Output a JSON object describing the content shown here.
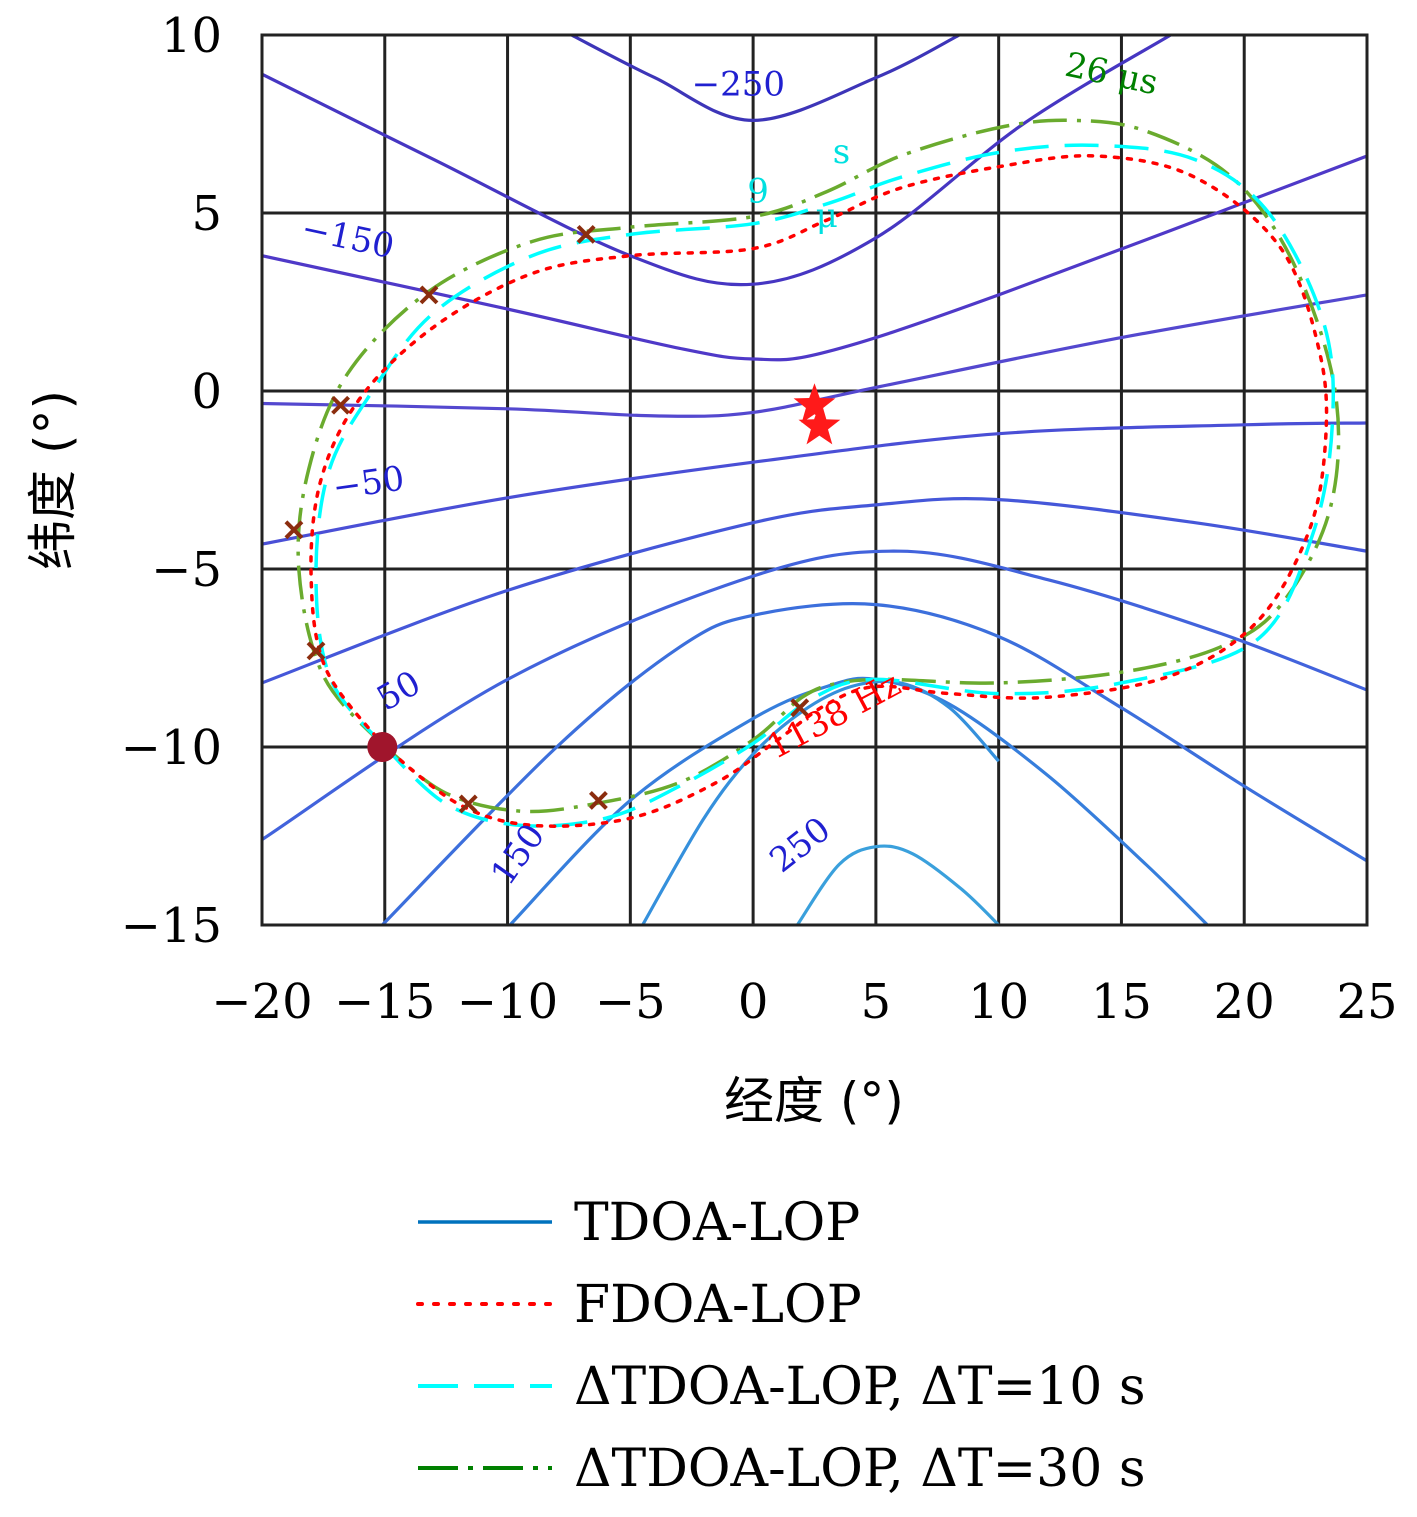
{
  "chart_data": {
    "type": "line",
    "xlabel": "经度 (°)",
    "ylabel": "纬度 (°)",
    "xlim": [
      -20,
      25
    ],
    "ylim": [
      -15,
      10
    ],
    "xticks": [
      "−20",
      "−15",
      "−10",
      "−5",
      "0",
      "5",
      "10",
      "15",
      "20",
      "25"
    ],
    "yticks": [
      "10",
      "5",
      "0",
      "−5",
      "−10",
      "−15"
    ],
    "grid": true,
    "legend_position": "bottom",
    "legend": [
      {
        "label": "TDOA-LOP",
        "color": "#0072bd",
        "style": "solid"
      },
      {
        "label": "FDOA-LOP",
        "color": "#ff0000",
        "style": "dotted"
      },
      {
        "label": "ΔTDOA-LOP, ΔT=10 s",
        "color": "#00ffff",
        "style": "dashed"
      },
      {
        "label": "ΔTDOA-LOP, ΔT=30 s",
        "color": "#008000",
        "style": "dashdot"
      }
    ],
    "tdoa_lops": [
      {
        "color": "#3d35b8",
        "points": [
          [
            -7.4,
            10
          ],
          [
            -4,
            8.8
          ],
          [
            0,
            7.6
          ],
          [
            5,
            8.8
          ],
          [
            8.4,
            10
          ]
        ]
      },
      {
        "color": "#4636c2",
        "points": [
          [
            -20,
            8.9
          ],
          [
            -13,
            6.5
          ],
          [
            -5,
            3.8
          ],
          [
            0,
            3
          ],
          [
            5,
            4.3
          ],
          [
            11,
            7.5
          ],
          [
            17,
            10
          ]
        ]
      },
      {
        "color": "#4f39c8",
        "points": [
          [
            -20,
            3.8
          ],
          [
            -10,
            2.3
          ],
          [
            -3,
            1.2
          ],
          [
            0,
            0.9
          ],
          [
            3,
            1.1
          ],
          [
            10,
            2.7
          ],
          [
            25,
            6.6
          ]
        ]
      },
      {
        "color": "#5448cf",
        "points": [
          [
            -20,
            -0.35
          ],
          [
            -10,
            -0.5
          ],
          [
            -4,
            -0.7
          ],
          [
            0,
            -0.6
          ],
          [
            5,
            0.1
          ],
          [
            15,
            1.5
          ],
          [
            25,
            2.7
          ]
        ]
      },
      {
        "color": "#4a4fd6",
        "points": [
          [
            -20,
            -4.3
          ],
          [
            -10,
            -3
          ],
          [
            0,
            -2
          ],
          [
            10,
            -1.2
          ],
          [
            20,
            -0.95
          ],
          [
            25,
            -0.9
          ]
        ]
      },
      {
        "color": "#4557d9",
        "points": [
          [
            -20,
            -8.2
          ],
          [
            -10,
            -5.6
          ],
          [
            0,
            -3.7
          ],
          [
            5,
            -3.2
          ],
          [
            10,
            -3.05
          ],
          [
            18,
            -3.7
          ],
          [
            25,
            -4.5
          ]
        ]
      },
      {
        "color": "#4263dc",
        "points": [
          [
            -20,
            -12.6
          ],
          [
            -10,
            -8.1
          ],
          [
            0,
            -5.2
          ],
          [
            6,
            -4.5
          ],
          [
            12,
            -5.3
          ],
          [
            19,
            -6.8
          ],
          [
            25,
            -8.4
          ]
        ]
      },
      {
        "color": "#3c6fdc",
        "points": [
          [
            -15.1,
            -15
          ],
          [
            -8,
            -10
          ],
          [
            -3,
            -7.2
          ],
          [
            0,
            -6.3
          ],
          [
            5,
            -6
          ],
          [
            10,
            -6.9
          ],
          [
            15,
            -8.9
          ],
          [
            20,
            -11.1
          ],
          [
            25,
            -13.2
          ]
        ]
      },
      {
        "color": "#367edc",
        "points": [
          [
            -9.9,
            -15
          ],
          [
            -5,
            -11.5
          ],
          [
            0,
            -9.2
          ],
          [
            3,
            -8.3
          ],
          [
            5,
            -8.1
          ],
          [
            8,
            -8.8
          ],
          [
            12,
            -10.8
          ],
          [
            16,
            -13.3
          ],
          [
            18.5,
            -15
          ]
        ]
      },
      {
        "color": "#3590dc",
        "points": [
          [
            -4.5,
            -15
          ],
          [
            -2,
            -12
          ],
          [
            0,
            -10.2
          ],
          [
            2,
            -9
          ],
          [
            4,
            -8.3
          ],
          [
            6,
            -8.2
          ],
          [
            8,
            -8.9
          ],
          [
            10,
            -10.4
          ]
        ]
      },
      {
        "color": "#3aa0dc",
        "points": [
          [
            1.8,
            -15
          ],
          [
            3.5,
            -13.3
          ],
          [
            5,
            -12.8
          ],
          [
            6.5,
            -13
          ],
          [
            8.5,
            -14
          ],
          [
            10,
            -15
          ]
        ]
      }
    ],
    "contour_labels": [
      {
        "text": "−250",
        "x": -0.6,
        "y": 8.3,
        "rotation": 0,
        "color": "#2020d0"
      },
      {
        "text": "−150",
        "x": -16.6,
        "y": 4.0,
        "rotation": 12,
        "color": "#2020d0"
      },
      {
        "text": "−50",
        "x": -15.6,
        "y": -2.9,
        "rotation": -8,
        "color": "#2020d0"
      },
      {
        "text": "50",
        "x": -14.2,
        "y": -8.7,
        "rotation": -30,
        "color": "#2020d0"
      },
      {
        "text": "150",
        "x": -9.2,
        "y": -13.2,
        "rotation": -55,
        "color": "#2020d0"
      },
      {
        "text": "250",
        "x": 2.2,
        "y": -13.0,
        "rotation": -38,
        "color": "#2020d0"
      },
      {
        "text": "26 μs",
        "x": 14.5,
        "y": 8.6,
        "rotation": 12,
        "color": "#008000"
      },
      {
        "text": "9",
        "x": 0.2,
        "y": 5.3,
        "rotation": 0,
        "color": "#00e0e0"
      },
      {
        "text": "μ",
        "x": 3.0,
        "y": 4.6,
        "rotation": 0,
        "color": "#00e0e0"
      },
      {
        "text": "s",
        "x": 3.6,
        "y": 6.4,
        "rotation": 0,
        "color": "#00e0e0"
      },
      {
        "text": "1138 Hz",
        "x": 3.5,
        "y": -9.4,
        "rotation": -28,
        "color": "#ff0000"
      }
    ],
    "fdoa_lop": {
      "color": "#ff0000",
      "points": [
        [
          -15,
          -10
        ],
        [
          -17.4,
          -7.8
        ],
        [
          -18,
          -5.2
        ],
        [
          -17.6,
          -2.5
        ],
        [
          -16,
          -0.2
        ],
        [
          -13,
          1.8
        ],
        [
          -9,
          3.3
        ],
        [
          -5,
          3.8
        ],
        [
          0,
          4
        ],
        [
          3,
          4.8
        ],
        [
          6,
          5.7
        ],
        [
          10,
          6.3
        ],
        [
          14,
          6.6
        ],
        [
          18,
          6
        ],
        [
          21.5,
          4
        ],
        [
          23.1,
          1
        ],
        [
          23.3,
          -1.5
        ],
        [
          22.6,
          -4
        ],
        [
          20.5,
          -6.5
        ],
        [
          17,
          -8
        ],
        [
          12,
          -8.6
        ],
        [
          8,
          -8.5
        ],
        [
          5,
          -8.3
        ],
        [
          3,
          -8.8
        ],
        [
          1,
          -9.8
        ],
        [
          -1.5,
          -11
        ],
        [
          -5,
          -12
        ],
        [
          -9,
          -12.2
        ],
        [
          -12,
          -11.6
        ],
        [
          -15,
          -10
        ]
      ]
    },
    "dtdoa10_lop": {
      "color": "#00ffff",
      "points": [
        [
          -15,
          -10
        ],
        [
          -17.2,
          -8.1
        ],
        [
          -17.8,
          -5.3
        ],
        [
          -17.3,
          -2.3
        ],
        [
          -15.5,
          0
        ],
        [
          -13,
          2.2
        ],
        [
          -9,
          3.8
        ],
        [
          -5,
          4.4
        ],
        [
          0,
          4.7
        ],
        [
          3.2,
          5.3
        ],
        [
          6,
          6
        ],
        [
          10,
          6.7
        ],
        [
          14,
          6.9
        ],
        [
          18,
          6.5
        ],
        [
          21,
          5
        ],
        [
          23.2,
          2
        ],
        [
          23.6,
          -0.8
        ],
        [
          22.8,
          -4
        ],
        [
          20.5,
          -7
        ],
        [
          15,
          -8.2
        ],
        [
          10,
          -8.5
        ],
        [
          5,
          -8.1
        ],
        [
          2.5,
          -8.6
        ],
        [
          0,
          -9.9
        ],
        [
          -3,
          -11.1
        ],
        [
          -6,
          -12
        ],
        [
          -9.5,
          -12.2
        ],
        [
          -12.5,
          -11.6
        ],
        [
          -15,
          -10
        ]
      ]
    },
    "dtdoa30_lop": {
      "color": "#6aab2e",
      "points": [
        [
          -15,
          -10
        ],
        [
          -17.5,
          -8
        ],
        [
          -18.5,
          -5
        ],
        [
          -18.1,
          -2.2
        ],
        [
          -16.5,
          0.5
        ],
        [
          -13.2,
          2.8
        ],
        [
          -9,
          4.2
        ],
        [
          -5,
          4.6
        ],
        [
          0,
          4.9
        ],
        [
          3,
          5.6
        ],
        [
          6,
          6.6
        ],
        [
          10,
          7.4
        ],
        [
          13,
          7.6
        ],
        [
          16,
          7.3
        ],
        [
          19.5,
          6
        ],
        [
          22,
          3.6
        ],
        [
          23.7,
          0
        ],
        [
          23.5,
          -3.3
        ],
        [
          21.5,
          -6
        ],
        [
          19,
          -7.2
        ],
        [
          15,
          -7.9
        ],
        [
          10,
          -8.2
        ],
        [
          5.5,
          -8.1
        ],
        [
          3.5,
          -8.2
        ],
        [
          2,
          -8.6
        ],
        [
          0,
          -9.8
        ],
        [
          -3,
          -11
        ],
        [
          -6.5,
          -11.6
        ],
        [
          -9.5,
          -11.8
        ],
        [
          -12.5,
          -11.3
        ],
        [
          -15,
          -10
        ]
      ]
    },
    "intersections": [
      [
        -6.8,
        4.4
      ],
      [
        -13.2,
        2.7
      ],
      [
        -16.8,
        -0.4
      ],
      [
        -18.7,
        -3.9
      ],
      [
        -17.8,
        -7.3
      ],
      [
        -11.6,
        -11.6
      ],
      [
        -6.3,
        -11.5
      ],
      [
        1.9,
        -8.9
      ]
    ],
    "true_positions": [
      [
        2.5,
        -0.4
      ],
      [
        2.7,
        -1.0
      ]
    ],
    "estimate": [
      -15.1,
      -10.0
    ]
  }
}
